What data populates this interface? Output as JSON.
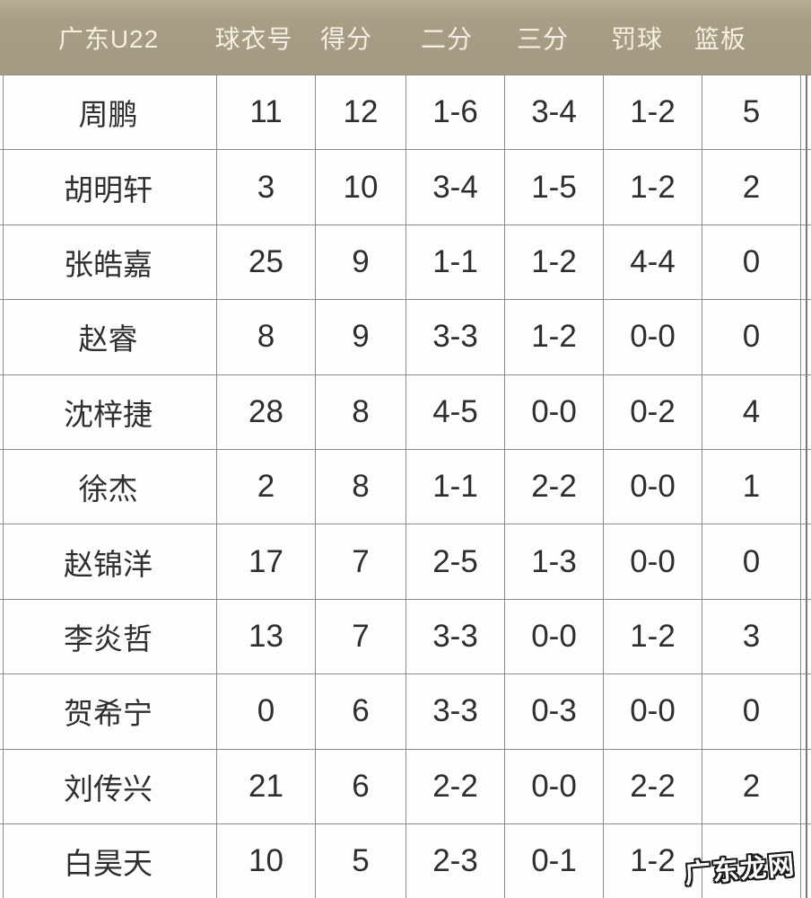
{
  "header": {
    "columns": [
      {
        "key": "team",
        "label": "广东U22"
      },
      {
        "key": "jersey",
        "label": "球衣号"
      },
      {
        "key": "points",
        "label": "得分"
      },
      {
        "key": "two",
        "label": "二分"
      },
      {
        "key": "three",
        "label": "三分"
      },
      {
        "key": "ft",
        "label": "罚球"
      },
      {
        "key": "reb",
        "label": "篮板"
      }
    ]
  },
  "table": {
    "rows": [
      {
        "name": "周鹏",
        "jersey": "11",
        "points": "12",
        "two": "1-6",
        "three": "3-4",
        "ft": "1-2",
        "reb": "5"
      },
      {
        "name": "胡明轩",
        "jersey": "3",
        "points": "10",
        "two": "3-4",
        "three": "1-5",
        "ft": "1-2",
        "reb": "2"
      },
      {
        "name": "张皓嘉",
        "jersey": "25",
        "points": "9",
        "two": "1-1",
        "three": "1-2",
        "ft": "4-4",
        "reb": "0"
      },
      {
        "name": "赵睿",
        "jersey": "8",
        "points": "9",
        "two": "3-3",
        "three": "1-2",
        "ft": "0-0",
        "reb": "0"
      },
      {
        "name": "沈梓捷",
        "jersey": "28",
        "points": "8",
        "two": "4-5",
        "three": "0-0",
        "ft": "0-2",
        "reb": "4"
      },
      {
        "name": "徐杰",
        "jersey": "2",
        "points": "8",
        "two": "1-1",
        "three": "2-2",
        "ft": "0-0",
        "reb": "1"
      },
      {
        "name": "赵锦洋",
        "jersey": "17",
        "points": "7",
        "two": "2-5",
        "three": "1-3",
        "ft": "0-0",
        "reb": "0"
      },
      {
        "name": "李炎哲",
        "jersey": "13",
        "points": "7",
        "two": "3-3",
        "three": "0-0",
        "ft": "1-2",
        "reb": "3"
      },
      {
        "name": "贺希宁",
        "jersey": "0",
        "points": "6",
        "two": "3-3",
        "three": "0-3",
        "ft": "0-0",
        "reb": "0"
      },
      {
        "name": "刘传兴",
        "jersey": "21",
        "points": "6",
        "two": "2-2",
        "three": "0-0",
        "ft": "2-2",
        "reb": "2"
      },
      {
        "name": "白昊天",
        "jersey": "10",
        "points": "5",
        "two": "2-3",
        "three": "0-1",
        "ft": "1-2",
        "reb": ""
      }
    ]
  },
  "watermark": {
    "text": "广东龙网"
  },
  "colors": {
    "header_bg": "#a89e85",
    "header_text": "#f4efe3",
    "grid_line": "#8b8b8b",
    "cell_text": "#2e2e2e",
    "body_bg": "#fdfdfd"
  }
}
